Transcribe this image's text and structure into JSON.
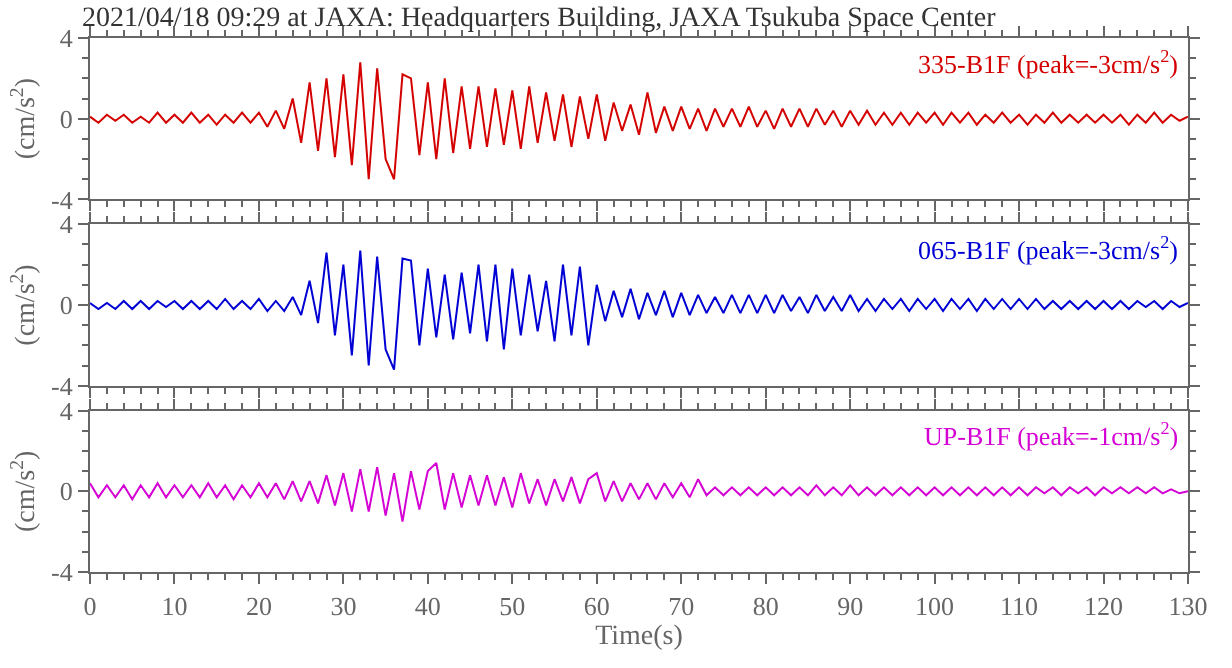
{
  "chart_data": [
    {
      "type": "line",
      "title": "2021/04/18 09:29 at JAXA: Headquarters Building, JAXA Tsukuba Space Center",
      "ylabel": "(cm/s$^{2}$)",
      "xlim": [
        0,
        130
      ],
      "xticks": [
        0,
        10,
        20,
        30,
        40,
        50,
        60,
        70,
        80,
        90,
        100,
        110,
        120,
        130
      ],
      "ylim": [
        -4,
        4
      ],
      "yticks": [
        -4,
        0,
        4
      ],
      "tick_labels": "y",
      "line_style": "solid",
      "x": [
        0,
        1,
        2,
        3,
        4,
        5,
        6,
        7,
        8,
        9,
        10,
        11,
        12,
        13,
        14,
        15,
        16,
        17,
        18,
        19,
        20,
        21,
        22,
        23,
        24,
        25,
        26,
        27,
        28,
        29,
        30,
        31,
        32,
        33,
        34,
        35,
        36,
        37,
        38,
        39,
        40,
        41,
        42,
        43,
        44,
        45,
        46,
        47,
        48,
        49,
        50,
        51,
        52,
        53,
        54,
        55,
        56,
        57,
        58,
        59,
        60,
        61,
        62,
        63,
        64,
        65,
        66,
        67,
        68,
        69,
        70,
        71,
        72,
        73,
        74,
        75,
        76,
        77,
        78,
        79,
        80,
        81,
        82,
        83,
        84,
        85,
        86,
        87,
        88,
        89,
        90,
        91,
        92,
        93,
        94,
        95,
        96,
        97,
        98,
        99,
        100,
        101,
        102,
        103,
        104,
        105,
        106,
        107,
        108,
        109,
        110,
        111,
        112,
        113,
        114,
        115,
        116,
        117,
        118,
        119,
        120,
        121,
        122,
        123,
        124,
        125,
        126,
        127,
        128,
        129,
        130
      ],
      "series": [
        {
          "name": "335-B1F (peak=-3cm/s$^{2}$)",
          "color": "#d40000",
          "values": [
            0.1,
            -0.2,
            0.2,
            -0.1,
            0.2,
            -0.2,
            0.1,
            -0.2,
            0.3,
            -0.2,
            0.2,
            -0.2,
            0.3,
            -0.2,
            0.2,
            -0.3,
            0.2,
            -0.2,
            0.3,
            -0.2,
            0.3,
            -0.4,
            0.4,
            -0.5,
            1.0,
            -1.2,
            1.8,
            -1.6,
            2.0,
            -1.9,
            2.2,
            -2.3,
            2.8,
            -3.0,
            2.5,
            -2.0,
            -3.0,
            2.2,
            2.0,
            -1.8,
            1.8,
            -2.0,
            2.0,
            -1.7,
            1.6,
            -1.5,
            1.6,
            -1.4,
            1.5,
            -1.3,
            1.4,
            -1.5,
            1.6,
            -1.2,
            1.3,
            -1.1,
            1.2,
            -1.4,
            1.1,
            -1.0,
            1.2,
            -1.1,
            0.8,
            -0.6,
            0.7,
            -0.8,
            1.3,
            -0.7,
            0.6,
            -0.6,
            0.6,
            -0.5,
            0.5,
            -0.6,
            0.5,
            -0.4,
            0.5,
            -0.4,
            0.6,
            -0.4,
            0.4,
            -0.5,
            0.5,
            -0.4,
            0.5,
            -0.4,
            0.5,
            -0.3,
            0.4,
            -0.4,
            0.4,
            -0.3,
            0.4,
            -0.3,
            0.3,
            -0.3,
            0.3,
            -0.3,
            0.3,
            -0.2,
            0.3,
            -0.3,
            0.3,
            -0.2,
            0.3,
            -0.3,
            0.2,
            -0.2,
            0.3,
            -0.2,
            0.2,
            -0.3,
            0.2,
            -0.2,
            0.3,
            -0.2,
            0.2,
            -0.2,
            0.2,
            -0.2,
            0.2,
            -0.2,
            0.2,
            -0.3,
            0.2,
            -0.2,
            0.3,
            -0.2,
            0.2,
            -0.1,
            0.1
          ]
        }
      ]
    },
    {
      "type": "line",
      "ylabel": "(cm/s$^{2}$)",
      "xlim": [
        0,
        130
      ],
      "xticks": [
        0,
        10,
        20,
        30,
        40,
        50,
        60,
        70,
        80,
        90,
        100,
        110,
        120,
        130
      ],
      "ylim": [
        -4,
        4
      ],
      "yticks": [
        -4,
        0,
        4
      ],
      "tick_labels": "y",
      "line_style": "solid",
      "x": [
        0,
        1,
        2,
        3,
        4,
        5,
        6,
        7,
        8,
        9,
        10,
        11,
        12,
        13,
        14,
        15,
        16,
        17,
        18,
        19,
        20,
        21,
        22,
        23,
        24,
        25,
        26,
        27,
        28,
        29,
        30,
        31,
        32,
        33,
        34,
        35,
        36,
        37,
        38,
        39,
        40,
        41,
        42,
        43,
        44,
        45,
        46,
        47,
        48,
        49,
        50,
        51,
        52,
        53,
        54,
        55,
        56,
        57,
        58,
        59,
        60,
        61,
        62,
        63,
        64,
        65,
        66,
        67,
        68,
        69,
        70,
        71,
        72,
        73,
        74,
        75,
        76,
        77,
        78,
        79,
        80,
        81,
        82,
        83,
        84,
        85,
        86,
        87,
        88,
        89,
        90,
        91,
        92,
        93,
        94,
        95,
        96,
        97,
        98,
        99,
        100,
        101,
        102,
        103,
        104,
        105,
        106,
        107,
        108,
        109,
        110,
        111,
        112,
        113,
        114,
        115,
        116,
        117,
        118,
        119,
        120,
        121,
        122,
        123,
        124,
        125,
        126,
        127,
        128,
        129,
        130
      ],
      "series": [
        {
          "name": "065-B1F (peak=-3cm/s$^{2}$)",
          "color": "#0000d4",
          "values": [
            0.1,
            -0.2,
            0.1,
            -0.2,
            0.2,
            -0.2,
            0.2,
            -0.2,
            0.2,
            -0.1,
            0.2,
            -0.2,
            0.2,
            -0.2,
            0.2,
            -0.2,
            0.3,
            -0.2,
            0.2,
            -0.2,
            0.3,
            -0.3,
            0.2,
            -0.3,
            0.4,
            -0.5,
            1.2,
            -0.9,
            2.6,
            -1.5,
            2.0,
            -2.5,
            2.7,
            -3.0,
            2.4,
            -2.2,
            -3.2,
            2.3,
            2.2,
            -2.0,
            1.8,
            -1.6,
            1.5,
            -1.7,
            1.6,
            -1.4,
            2.0,
            -1.8,
            2.0,
            -2.2,
            1.8,
            -1.5,
            1.5,
            -1.3,
            1.2,
            -1.8,
            2.0,
            -1.5,
            1.9,
            -2.0,
            1.0,
            -0.8,
            0.7,
            -0.6,
            0.8,
            -0.7,
            0.6,
            -0.5,
            0.7,
            -0.6,
            0.6,
            -0.5,
            0.5,
            -0.4,
            0.4,
            -0.4,
            0.5,
            -0.4,
            0.5,
            -0.4,
            0.5,
            -0.4,
            0.5,
            -0.3,
            0.4,
            -0.4,
            0.5,
            -0.3,
            0.4,
            -0.3,
            0.5,
            -0.3,
            0.3,
            -0.3,
            0.3,
            -0.2,
            0.3,
            -0.3,
            0.3,
            -0.2,
            0.3,
            -0.3,
            0.3,
            -0.2,
            0.3,
            -0.3,
            0.3,
            -0.2,
            0.3,
            -0.2,
            0.3,
            -0.2,
            0.3,
            -0.2,
            0.2,
            -0.2,
            0.2,
            -0.2,
            0.2,
            -0.2,
            0.2,
            -0.2,
            0.2,
            -0.2,
            0.2,
            -0.1,
            0.2,
            -0.2,
            0.2,
            -0.1,
            0.1
          ]
        }
      ]
    },
    {
      "type": "line",
      "xlabel": "Time(s)",
      "ylabel": "(cm/s$^{2}$)",
      "xlim": [
        0,
        130
      ],
      "xticks": [
        0,
        10,
        20,
        30,
        40,
        50,
        60,
        70,
        80,
        90,
        100,
        110,
        120,
        130
      ],
      "ylim": [
        -4,
        4
      ],
      "yticks": [
        -4,
        0,
        4
      ],
      "line_style": "solid",
      "x": [
        0,
        1,
        2,
        3,
        4,
        5,
        6,
        7,
        8,
        9,
        10,
        11,
        12,
        13,
        14,
        15,
        16,
        17,
        18,
        19,
        20,
        21,
        22,
        23,
        24,
        25,
        26,
        27,
        28,
        29,
        30,
        31,
        32,
        33,
        34,
        35,
        36,
        37,
        38,
        39,
        40,
        41,
        42,
        43,
        44,
        45,
        46,
        47,
        48,
        49,
        50,
        51,
        52,
        53,
        54,
        55,
        56,
        57,
        58,
        59,
        60,
        61,
        62,
        63,
        64,
        65,
        66,
        67,
        68,
        69,
        70,
        71,
        72,
        73,
        74,
        75,
        76,
        77,
        78,
        79,
        80,
        81,
        82,
        83,
        84,
        85,
        86,
        87,
        88,
        89,
        90,
        91,
        92,
        93,
        94,
        95,
        96,
        97,
        98,
        99,
        100,
        101,
        102,
        103,
        104,
        105,
        106,
        107,
        108,
        109,
        110,
        111,
        112,
        113,
        114,
        115,
        116,
        117,
        118,
        119,
        120,
        121,
        122,
        123,
        124,
        125,
        126,
        127,
        128,
        129,
        130
      ],
      "series": [
        {
          "name": "UP-B1F (peak=-1cm/s$^{2}$)",
          "color": "#d400d4",
          "values": [
            0.4,
            -0.3,
            0.3,
            -0.3,
            0.3,
            -0.4,
            0.3,
            -0.3,
            0.4,
            -0.3,
            0.3,
            -0.3,
            0.3,
            -0.3,
            0.4,
            -0.3,
            0.3,
            -0.4,
            0.3,
            -0.3,
            0.4,
            -0.3,
            0.4,
            -0.4,
            0.5,
            -0.5,
            0.5,
            -0.6,
            0.8,
            -0.7,
            0.9,
            -1.0,
            1.1,
            -1.0,
            1.2,
            -1.2,
            0.9,
            -1.5,
            1.0,
            -0.9,
            1.0,
            1.4,
            -0.9,
            0.9,
            -0.8,
            0.8,
            -0.7,
            0.8,
            -0.7,
            0.7,
            -0.8,
            0.9,
            -0.6,
            0.6,
            -0.7,
            0.6,
            -0.5,
            0.7,
            -0.6,
            0.6,
            0.9,
            -0.5,
            0.5,
            -0.5,
            0.4,
            -0.4,
            0.4,
            -0.4,
            0.4,
            -0.3,
            0.4,
            -0.3,
            0.6,
            -0.2,
            0.2,
            -0.2,
            0.2,
            -0.2,
            0.2,
            -0.2,
            0.2,
            -0.2,
            0.2,
            -0.2,
            0.2,
            -0.2,
            0.3,
            -0.2,
            0.2,
            -0.2,
            0.3,
            -0.2,
            0.2,
            -0.2,
            0.2,
            -0.2,
            0.2,
            -0.2,
            0.2,
            -0.2,
            0.2,
            -0.2,
            0.2,
            -0.2,
            0.2,
            -0.2,
            0.2,
            -0.2,
            0.2,
            -0.2,
            0.2,
            -0.2,
            0.2,
            -0.1,
            0.2,
            -0.2,
            0.2,
            -0.1,
            0.2,
            -0.2,
            0.2,
            -0.1,
            0.2,
            -0.1,
            0.2,
            -0.1,
            0.2,
            -0.1,
            0.1,
            -0.1,
            0.0
          ]
        }
      ]
    }
  ]
}
